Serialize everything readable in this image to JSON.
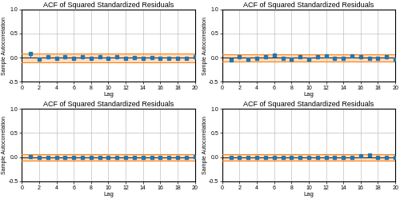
{
  "chart_data": [
    {
      "type": "stem",
      "title": "ACF of Squared Standardized Residuals",
      "xlabel": "Lag",
      "ylabel": "Sample Autocorrelation",
      "x": [
        1,
        2,
        3,
        4,
        5,
        6,
        7,
        8,
        9,
        10,
        11,
        12,
        13,
        14,
        15,
        16,
        17,
        18,
        19,
        20
      ],
      "values": [
        0.08,
        -0.03,
        0.02,
        -0.02,
        0.02,
        -0.02,
        0.01,
        -0.01,
        0.01,
        -0.02,
        0.01,
        -0.01,
        0.0,
        -0.01,
        0.0,
        -0.01,
        -0.01,
        -0.01,
        -0.01,
        0.02
      ],
      "conf_bound": 0.09,
      "xlim": [
        0,
        20
      ],
      "ylim": [
        -0.5,
        1.0
      ],
      "xticks": [
        0,
        2,
        4,
        6,
        8,
        10,
        12,
        14,
        16,
        18,
        20
      ],
      "yticks": [
        {
          "value": -0.5,
          "label": "-0.5"
        },
        {
          "value": 0,
          "label": "0.0"
        },
        0.5,
        {
          "value": 1,
          "label": "1.0"
        }
      ],
      "grid": true
    },
    {
      "type": "stem",
      "title": "ACF of Squared Standardized Residuals",
      "xlabel": "Lag",
      "ylabel": "Sample Autocorrelation",
      "x": [
        1,
        2,
        3,
        4,
        5,
        6,
        7,
        8,
        9,
        10,
        11,
        12,
        13,
        14,
        15,
        16,
        17,
        18,
        19,
        20
      ],
      "values": [
        -0.04,
        0.01,
        -0.03,
        -0.01,
        0.02,
        0.05,
        -0.02,
        -0.03,
        0.02,
        -0.03,
        0.01,
        0.03,
        -0.01,
        -0.01,
        0.03,
        0.01,
        -0.01,
        -0.01,
        0.01,
        -0.03
      ],
      "conf_bound": 0.075,
      "xlim": [
        0,
        20
      ],
      "ylim": [
        -0.5,
        1.0
      ],
      "xticks": [
        0,
        2,
        4,
        6,
        8,
        10,
        12,
        14,
        16,
        18,
        20
      ],
      "yticks": [
        {
          "value": -0.5,
          "label": "-0.5"
        },
        {
          "value": 0,
          "label": "0.0"
        },
        0.5,
        {
          "value": 1,
          "label": "1.0"
        }
      ],
      "grid": true
    },
    {
      "type": "stem",
      "title": "ACF of Squared Standardized Residuals",
      "xlabel": "Lag",
      "ylabel": "Sample Autocorrelation",
      "x": [
        1,
        2,
        3,
        4,
        5,
        6,
        7,
        8,
        9,
        10,
        11,
        12,
        13,
        14,
        15,
        16,
        17,
        18,
        19,
        20
      ],
      "values": [
        0.01,
        0.0,
        -0.01,
        0.0,
        -0.01,
        0.0,
        -0.01,
        0.0,
        0.0,
        0.0,
        0.0,
        -0.01,
        0.0,
        0.0,
        0.0,
        -0.01,
        0.0,
        0.0,
        0.0,
        0.01
      ],
      "conf_bound": 0.065,
      "xlim": [
        0,
        20
      ],
      "ylim": [
        -0.5,
        1.0
      ],
      "xticks": [
        0,
        2,
        4,
        6,
        8,
        10,
        12,
        14,
        16,
        18,
        20
      ],
      "yticks": [
        {
          "value": -0.5,
          "label": "-0.5"
        },
        {
          "value": 0,
          "label": "0.0"
        },
        0.5,
        {
          "value": 1,
          "label": "1.0"
        }
      ],
      "grid": true
    },
    {
      "type": "stem",
      "title": "ACF of Squared Standardized Residuals",
      "xlabel": "Lag",
      "ylabel": "Sample Autocorrelation",
      "x": [
        1,
        2,
        3,
        4,
        5,
        6,
        7,
        8,
        9,
        10,
        11,
        12,
        13,
        14,
        15,
        16,
        17,
        18,
        19,
        20
      ],
      "values": [
        -0.01,
        -0.01,
        0.0,
        -0.01,
        0.0,
        0.0,
        -0.01,
        0.0,
        0.0,
        0.0,
        0.0,
        0.0,
        0.0,
        0.0,
        0.0,
        0.03,
        0.05,
        -0.01,
        0.0,
        -0.01
      ],
      "conf_bound": 0.065,
      "xlim": [
        0,
        20
      ],
      "ylim": [
        -0.5,
        1.0
      ],
      "xticks": [
        0,
        2,
        4,
        6,
        8,
        10,
        12,
        14,
        16,
        18,
        20
      ],
      "yticks": [
        {
          "value": -0.5,
          "label": "-0.5"
        },
        {
          "value": 0,
          "label": "0.0"
        },
        0.5,
        {
          "value": 1,
          "label": "1.0"
        }
      ],
      "grid": true
    }
  ]
}
